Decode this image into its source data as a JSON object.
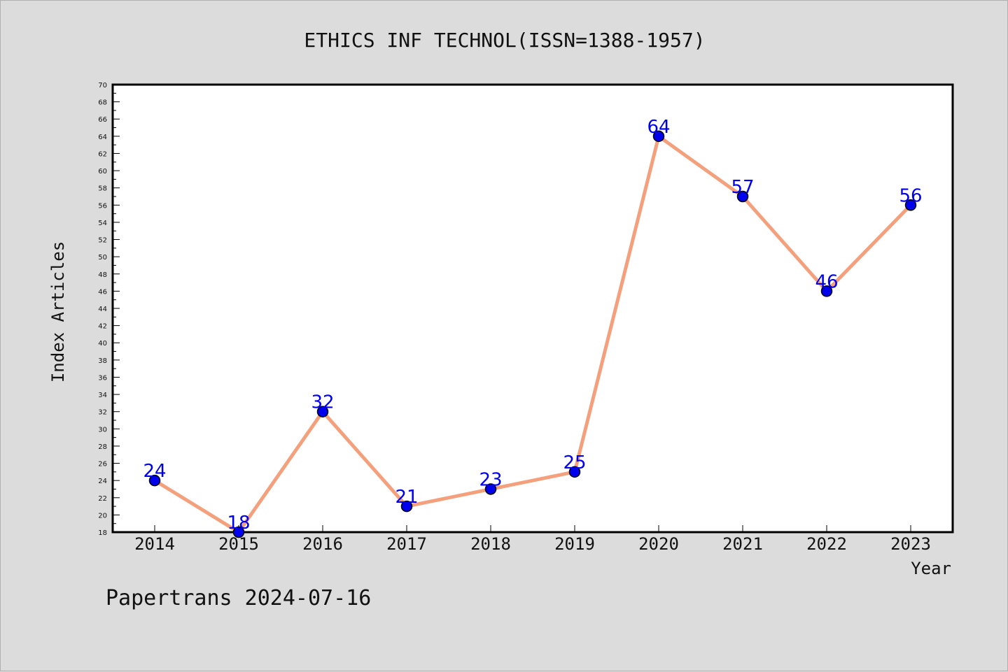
{
  "chart_data": {
    "type": "line",
    "title": "ETHICS INF TECHNOL(ISSN=1388-1957)",
    "xlabel": "Year",
    "ylabel": "Index Articles",
    "categories": [
      "2014",
      "2015",
      "2016",
      "2017",
      "2018",
      "2019",
      "2020",
      "2021",
      "2022",
      "2023"
    ],
    "values": [
      24,
      18,
      32,
      21,
      23,
      25,
      64,
      57,
      46,
      56
    ],
    "ylim": [
      18,
      70
    ],
    "ytick_step": 2,
    "grid": false,
    "line_color": "#f4a07c",
    "marker_color": "#0000ee",
    "label_color": "#0000ee"
  },
  "footer": "Papertrans 2024-07-16"
}
